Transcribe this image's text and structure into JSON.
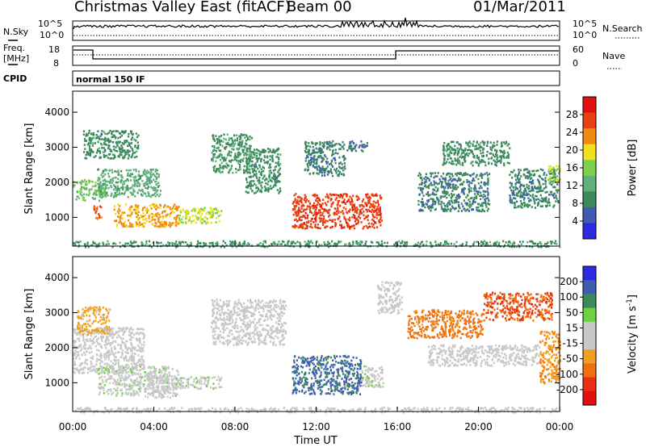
{
  "header": {
    "station": "Christmas Valley East (fitACF)",
    "beam": "Beam 00",
    "date": "01/Mar/2011"
  },
  "strips": {
    "nsky_label": "N.Sky",
    "nsky_ticks": [
      "10^5",
      "10^0"
    ],
    "nsearch_label": "N.Search",
    "nsearch_ticks": [
      "10^5",
      "10^0"
    ],
    "freq_label_line1": "Freq.",
    "freq_label_line2": "[MHz]",
    "freq_ticks": [
      "18",
      "8"
    ],
    "nave_label": "Nave",
    "nave_ticks": [
      "60",
      "0"
    ],
    "cpid_label": "CPID",
    "cpid_text": "normal 150 IF"
  },
  "colors": {
    "power": [
      "#2d2be0",
      "#3f5db0",
      "#3b8a5b",
      "#5fb07a",
      "#7fd14a",
      "#f0e01e",
      "#f08a10",
      "#e84010",
      "#e41010"
    ],
    "velocity": [
      "#2d2be0",
      "#3f5db0",
      "#3b8a5b",
      "#6cd23e",
      "#c8c8c8",
      "#c8c8c8",
      "#f0a020",
      "#f07010",
      "#e83010",
      "#e41010"
    ],
    "sky_trace": "#000000"
  },
  "chart_data": [
    {
      "type": "heatmap",
      "title": "Power",
      "ylabel": "Slant Range [km]",
      "xlabel": "",
      "ylim": [
        180,
        4600
      ],
      "xlim": [
        0,
        24
      ],
      "y_ticks": [
        "1000",
        "2000",
        "3000",
        "4000"
      ],
      "colorbar": {
        "label": "Power [dB]",
        "ticks": [
          "4",
          "8",
          "12",
          "16",
          "20",
          "24",
          "28"
        ],
        "range": [
          0,
          32
        ]
      },
      "regions": [
        {
          "t": [
            0.0,
            1.6
          ],
          "r": [
            1500,
            2100
          ],
          "v": 14
        },
        {
          "t": [
            1.0,
            1.4
          ],
          "r": [
            950,
            1350
          ],
          "v": 26
        },
        {
          "t": [
            1.2,
            4.3
          ],
          "r": [
            1600,
            2400
          ],
          "v": 12
        },
        {
          "t": [
            0.5,
            3.2
          ],
          "r": [
            2700,
            3500
          ],
          "v": 9
        },
        {
          "t": [
            2.0,
            5.2
          ],
          "r": [
            750,
            1400
          ],
          "v": 22
        },
        {
          "t": [
            5.2,
            7.3
          ],
          "r": [
            850,
            1300
          ],
          "v": 18
        },
        {
          "t": [
            6.8,
            8.8
          ],
          "r": [
            2300,
            3400
          ],
          "v": 10
        },
        {
          "t": [
            8.5,
            10.2
          ],
          "r": [
            1700,
            3000
          ],
          "v": 9
        },
        {
          "t": [
            10.8,
            15.2
          ],
          "r": [
            700,
            1700
          ],
          "v": 27
        },
        {
          "t": [
            11.4,
            13.4
          ],
          "r": [
            2200,
            3200
          ],
          "v": 8
        },
        {
          "t": [
            13.5,
            14.5
          ],
          "r": [
            2900,
            3200
          ],
          "v": 7
        },
        {
          "t": [
            17.0,
            20.5
          ],
          "r": [
            1200,
            2300
          ],
          "v": 8
        },
        {
          "t": [
            18.2,
            21.5
          ],
          "r": [
            2500,
            3200
          ],
          "v": 9
        },
        {
          "t": [
            21.5,
            23.9
          ],
          "r": [
            1300,
            2400
          ],
          "v": 8
        },
        {
          "t": [
            23.3,
            24.0
          ],
          "r": [
            2000,
            2500
          ],
          "v": 17
        },
        {
          "t": [
            0.0,
            24.0
          ],
          "r": [
            180,
            350
          ],
          "v": 10
        }
      ]
    },
    {
      "type": "heatmap",
      "title": "Velocity",
      "ylabel": "Slant Range [km]",
      "xlabel": "Time UT",
      "ylim": [
        180,
        4600
      ],
      "xlim": [
        0,
        24
      ],
      "y_ticks": [
        "1000",
        "2000",
        "3000",
        "4000"
      ],
      "x_ticks": [
        "00:00",
        "04:00",
        "08:00",
        "12:00",
        "16:00",
        "20:00",
        "00:00"
      ],
      "colorbar": {
        "label": "Velocity [m s-1]",
        "ticks": [
          "200",
          "100",
          "50",
          "15",
          "-15",
          "-50",
          "-100",
          "-200"
        ],
        "range": [
          -250,
          250
        ]
      },
      "regions": [
        {
          "t": [
            0.0,
            3.5
          ],
          "r": [
            1300,
            2600
          ],
          "v": 0
        },
        {
          "t": [
            0.2,
            1.8
          ],
          "r": [
            2400,
            3200
          ],
          "v": -70
        },
        {
          "t": [
            1.2,
            5.2
          ],
          "r": [
            650,
            1500
          ],
          "v": 30
        },
        {
          "t": [
            3.5,
            4.8
          ],
          "r": [
            600,
            1300
          ],
          "v": 0
        },
        {
          "t": [
            5.0,
            7.3
          ],
          "r": [
            850,
            1200
          ],
          "v": 30
        },
        {
          "t": [
            6.8,
            10.5
          ],
          "r": [
            2100,
            3400
          ],
          "v": 0
        },
        {
          "t": [
            10.8,
            14.2
          ],
          "r": [
            700,
            1800
          ],
          "v": 160
        },
        {
          "t": [
            14.2,
            15.3
          ],
          "r": [
            900,
            1500
          ],
          "v": 30
        },
        {
          "t": [
            15.0,
            16.2
          ],
          "r": [
            3000,
            3900
          ],
          "v": 0
        },
        {
          "t": [
            16.5,
            20.2
          ],
          "r": [
            2300,
            3100
          ],
          "v": -120
        },
        {
          "t": [
            17.5,
            23.0
          ],
          "r": [
            1500,
            2100
          ],
          "v": 0
        },
        {
          "t": [
            20.2,
            23.6
          ],
          "r": [
            2800,
            3600
          ],
          "v": -150
        },
        {
          "t": [
            23.0,
            24.0
          ],
          "r": [
            1000,
            2500
          ],
          "v": -90
        },
        {
          "t": [
            0.0,
            24.0
          ],
          "r": [
            180,
            320
          ],
          "v": 20
        }
      ]
    }
  ]
}
